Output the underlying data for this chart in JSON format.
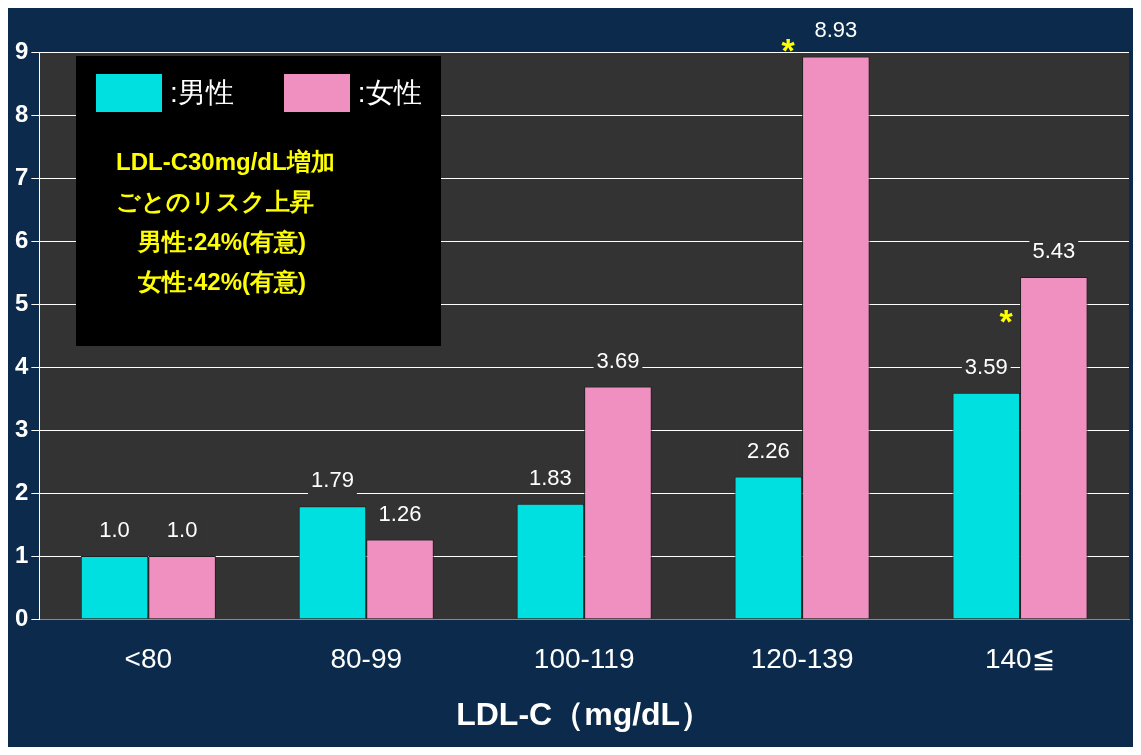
{
  "chart_data": {
    "type": "bar",
    "xlabel": "LDL-C（mg/dL）",
    "categories": [
      "<80",
      "80-99",
      "100-119",
      "120-139",
      "140≦"
    ],
    "series": [
      {
        "name": ":男性",
        "color": "#00e0e0",
        "values": [
          1.0,
          1.79,
          1.83,
          2.26,
          3.59
        ],
        "value_labels": [
          "1.0",
          "1.79",
          "1.83",
          "2.26",
          "3.59"
        ]
      },
      {
        "name": ":女性",
        "color": "#f090c0",
        "values": [
          1.0,
          1.26,
          3.69,
          8.93,
          5.43
        ],
        "value_labels": [
          "1.0",
          "1.26",
          "3.69",
          "8.93",
          "5.43"
        ]
      }
    ],
    "ylim": [
      0,
      9
    ],
    "yticks": [
      0,
      1,
      2,
      3,
      4,
      5,
      6,
      7,
      8,
      9
    ],
    "grid": "y",
    "legend": "top left",
    "annotations": [
      "LDL-C30mg/dL増加",
      "ごとのリスク上昇",
      "男性:24%(有意)",
      "女性:42%(有意)",
      {
        "text": "*",
        "x": "120-139",
        "y": 8.9
      },
      {
        "text": "*",
        "x": "140≦",
        "y": 4.6
      }
    ]
  }
}
